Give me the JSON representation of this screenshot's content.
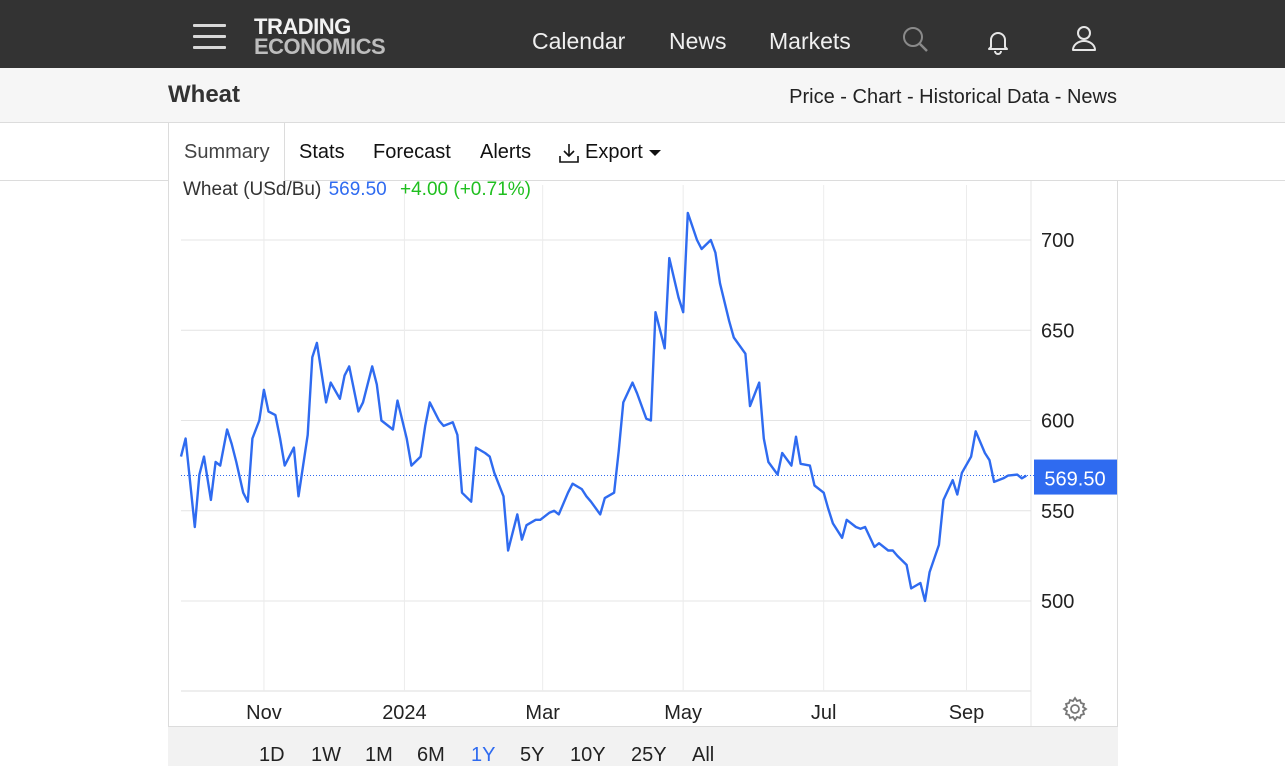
{
  "nav": {
    "logo_line1": "TRADING",
    "logo_line2": "ECONOMICS",
    "links": [
      "Calendar",
      "News",
      "Markets"
    ]
  },
  "header": {
    "title": "Wheat",
    "links": "Price - Chart - Historical Data - News"
  },
  "tabs": {
    "active": "Summary",
    "items": [
      "Stats",
      "Forecast",
      "Alerts"
    ],
    "export": "Export"
  },
  "quote": {
    "name": "Wheat (USd/Bu)",
    "price": "569.50",
    "change": "+4.00 (+0.71%)"
  },
  "ranges": [
    "1D",
    "1W",
    "1M",
    "6M",
    "1Y",
    "5Y",
    "10Y",
    "25Y",
    "All"
  ],
  "active_range": "1Y",
  "colors": {
    "line": "#2f6bf0",
    "change": "#1fbf1f",
    "nav": "#333333"
  },
  "chart_data": {
    "type": "line",
    "ylabel": "USd/Bu",
    "yticks": [
      500,
      550,
      600,
      650,
      700
    ],
    "ylim": [
      450,
      725
    ],
    "xlim": [
      "2023-09-26",
      "2024-09-29"
    ],
    "xticks": [
      {
        "label": "Nov",
        "date": "2023-11-01"
      },
      {
        "label": "2024",
        "date": "2024-01-01"
      },
      {
        "label": "Mar",
        "date": "2024-03-01"
      },
      {
        "label": "May",
        "date": "2024-05-01"
      },
      {
        "label": "Jul",
        "date": "2024-07-01"
      },
      {
        "label": "Sep",
        "date": "2024-09-01"
      }
    ],
    "last_value": 569.5,
    "last_value_label": "569.50",
    "series": [
      {
        "x": [
          "2023-09-26",
          "2023-09-28",
          "2023-10-02",
          "2023-10-04",
          "2023-10-06",
          "2023-10-09",
          "2023-10-11",
          "2023-10-13",
          "2023-10-16",
          "2023-10-18",
          "2023-10-20",
          "2023-10-23",
          "2023-10-25",
          "2023-10-27",
          "2023-10-30",
          "2023-11-01",
          "2023-11-03",
          "2023-11-06",
          "2023-11-08",
          "2023-11-10",
          "2023-11-14",
          "2023-11-16",
          "2023-11-20",
          "2023-11-22",
          "2023-11-24",
          "2023-11-28",
          "2023-11-30",
          "2023-12-04",
          "2023-12-06",
          "2023-12-08",
          "2023-12-12",
          "2023-12-14",
          "2023-12-18",
          "2023-12-20",
          "2023-12-22",
          "2023-12-27",
          "2023-12-29",
          "2024-01-02",
          "2024-01-04",
          "2024-01-08",
          "2024-01-10",
          "2024-01-12",
          "2024-01-16",
          "2024-01-18",
          "2024-01-22",
          "2024-01-24",
          "2024-01-26",
          "2024-01-30",
          "2024-02-01",
          "2024-02-05",
          "2024-02-07",
          "2024-02-09",
          "2024-02-13",
          "2024-02-15",
          "2024-02-19",
          "2024-02-21",
          "2024-02-23",
          "2024-02-27",
          "2024-02-29",
          "2024-03-04",
          "2024-03-06",
          "2024-03-08",
          "2024-03-12",
          "2024-03-14",
          "2024-03-18",
          "2024-03-20",
          "2024-03-22",
          "2024-03-26",
          "2024-03-28",
          "2024-04-01",
          "2024-04-03",
          "2024-04-05",
          "2024-04-09",
          "2024-04-11",
          "2024-04-15",
          "2024-04-17",
          "2024-04-19",
          "2024-04-23",
          "2024-04-25",
          "2024-04-29",
          "2024-05-01",
          "2024-05-03",
          "2024-05-07",
          "2024-05-09",
          "2024-05-13",
          "2024-05-15",
          "2024-05-17",
          "2024-05-21",
          "2024-05-23",
          "2024-05-28",
          "2024-05-30",
          "2024-06-03",
          "2024-06-05",
          "2024-06-07",
          "2024-06-11",
          "2024-06-13",
          "2024-06-17",
          "2024-06-19",
          "2024-06-21",
          "2024-06-25",
          "2024-06-27",
          "2024-07-01",
          "2024-07-03",
          "2024-07-05",
          "2024-07-09",
          "2024-07-11",
          "2024-07-15",
          "2024-07-17",
          "2024-07-19",
          "2024-07-23",
          "2024-07-25",
          "2024-07-29",
          "2024-07-31",
          "2024-08-02",
          "2024-08-06",
          "2024-08-08",
          "2024-08-12",
          "2024-08-14",
          "2024-08-16",
          "2024-08-20",
          "2024-08-22",
          "2024-08-26",
          "2024-08-28",
          "2024-08-30",
          "2024-09-03",
          "2024-09-05",
          "2024-09-09",
          "2024-09-11",
          "2024-09-13",
          "2024-09-17",
          "2024-09-19",
          "2024-09-23",
          "2024-09-25",
          "2024-09-27"
        ],
        "y": [
          580,
          590,
          541,
          570,
          580,
          556,
          577,
          575,
          595,
          587,
          577,
          560,
          555,
          590,
          600,
          617,
          605,
          603,
          590,
          575,
          585,
          558,
          592,
          635,
          643,
          610,
          621,
          612,
          625,
          630,
          605,
          610,
          630,
          620,
          600,
          595,
          611,
          590,
          575,
          580,
          597,
          610,
          600,
          597,
          599,
          592,
          560,
          555,
          585,
          582,
          580,
          571,
          558,
          528,
          548,
          534,
          542,
          545,
          545,
          549,
          550,
          548,
          560,
          565,
          562,
          558,
          555,
          548,
          557,
          560,
          583,
          610,
          621,
          615,
          601,
          600,
          660,
          640,
          690,
          668,
          660,
          715,
          700,
          695,
          700,
          693,
          676,
          655,
          646,
          637,
          608,
          621,
          590,
          577,
          570,
          582,
          575,
          591,
          576,
          575,
          564,
          560,
          551,
          543,
          535,
          545,
          541,
          540,
          541,
          530,
          532,
          528,
          528,
          525,
          520,
          507,
          510,
          500,
          516,
          531,
          556,
          567,
          559,
          571,
          580,
          594,
          582,
          578,
          566,
          568,
          569.5,
          570,
          568,
          569.5
        ],
        "note_x_y_pairs": "approximate readings"
      }
    ]
  }
}
